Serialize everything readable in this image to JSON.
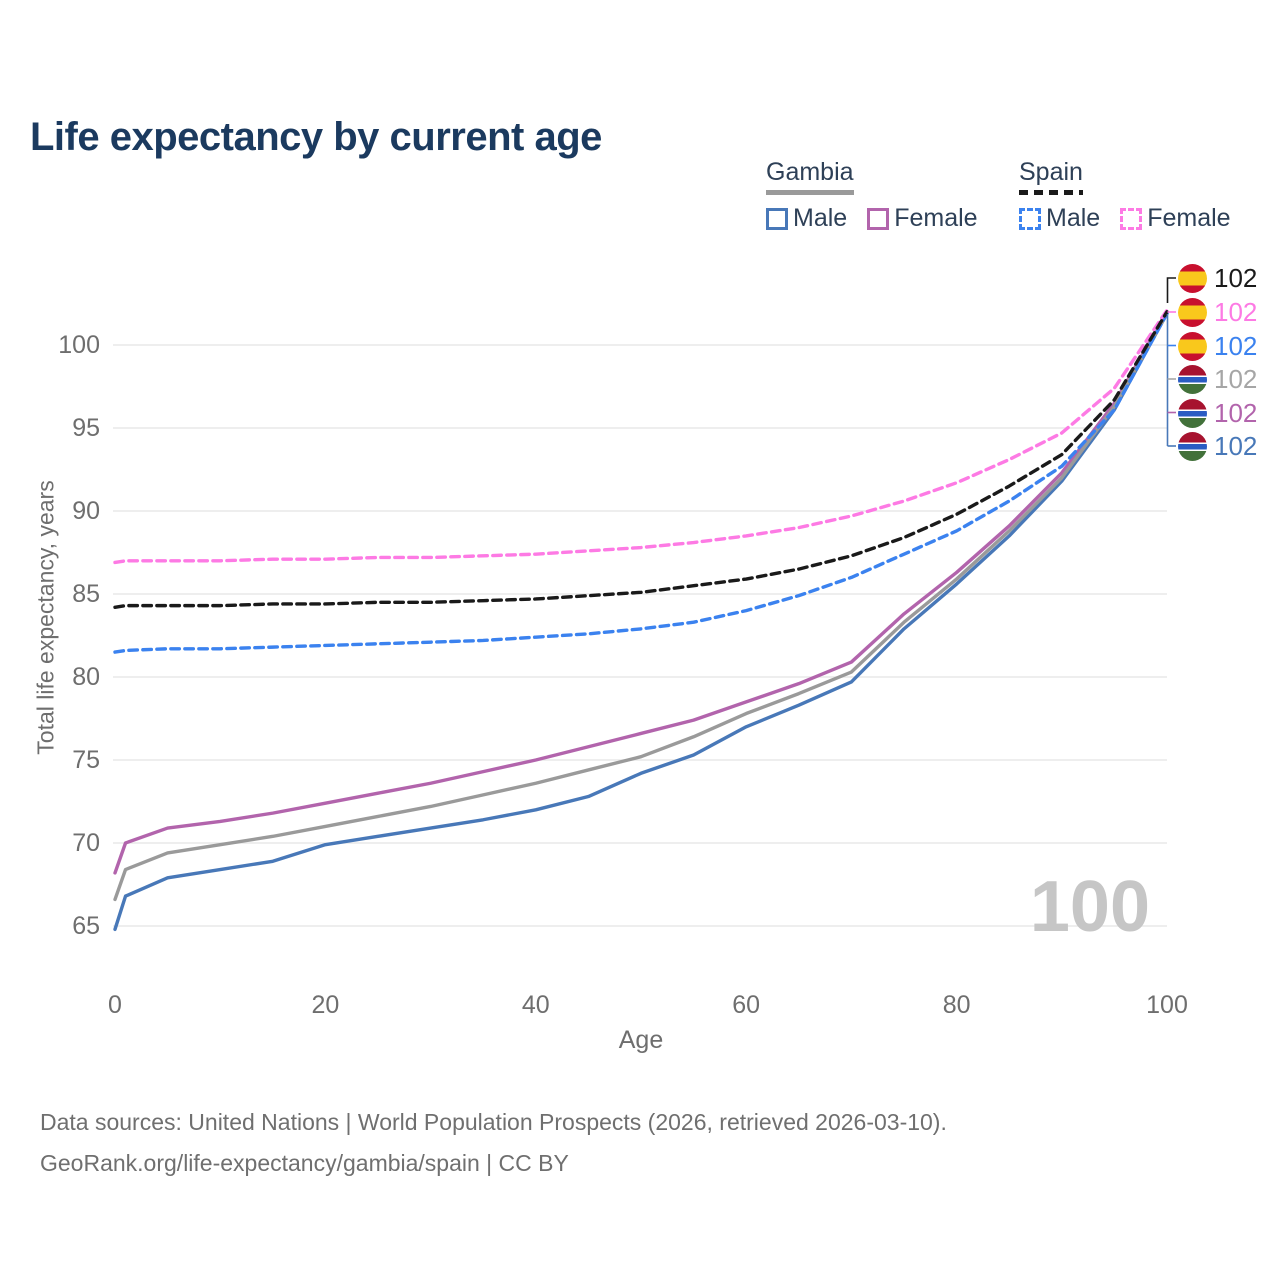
{
  "title": "Life expectancy by current age",
  "legend": {
    "groups": [
      {
        "label": "Gambia",
        "line_style": "solid",
        "line_color": "#9a9a9a",
        "items": [
          {
            "label": "Male",
            "color": "#4878b8"
          },
          {
            "label": "Female",
            "color": "#b264ac"
          }
        ]
      },
      {
        "label": "Spain",
        "line_style": "dashed",
        "line_color": "#1a1a1a",
        "items": [
          {
            "label": "Male",
            "color": "#3b82ef"
          },
          {
            "label": "Female",
            "color": "#fd7ae4"
          }
        ]
      }
    ]
  },
  "watermark": "100",
  "right_labels": [
    {
      "flag": "spain",
      "value": "102",
      "color": "#1a1a1a"
    },
    {
      "flag": "spain",
      "value": "102",
      "color": "#fd7ae4"
    },
    {
      "flag": "spain",
      "value": "102",
      "color": "#3b82ef"
    },
    {
      "flag": "gambia",
      "value": "102",
      "color": "#a6a6a6"
    },
    {
      "flag": "gambia",
      "value": "102",
      "color": "#b264ac"
    },
    {
      "flag": "gambia",
      "value": "102",
      "color": "#4878b8"
    }
  ],
  "footer": {
    "line1": "Data sources: United Nations | World Population Prospects (2026, retrieved 2026-03-10).",
    "line2": "GeoRank.org/life-expectancy/gambia/spain | CC BY"
  },
  "chart_data": {
    "type": "line",
    "title": "Life expectancy by current age",
    "xlabel": "Age",
    "ylabel": "Total life expectancy, years",
    "xlim": [
      0,
      100
    ],
    "ylim": [
      63,
      103
    ],
    "x_ticks": [
      0,
      20,
      40,
      60,
      80,
      100
    ],
    "y_ticks": [
      65,
      70,
      75,
      80,
      85,
      90,
      95,
      100
    ],
    "grid": "horizontal-only",
    "legend_position": "top-right",
    "x": [
      0,
      1,
      5,
      10,
      15,
      20,
      25,
      30,
      35,
      40,
      45,
      50,
      55,
      60,
      65,
      70,
      75,
      80,
      85,
      90,
      95,
      100
    ],
    "series": [
      {
        "name": "Spain Total",
        "country": "Spain",
        "sex": "Both",
        "style": "dashed",
        "color": "#1a1a1a",
        "values": [
          84.2,
          84.3,
          84.3,
          84.3,
          84.4,
          84.4,
          84.5,
          84.5,
          84.6,
          84.7,
          84.9,
          85.1,
          85.5,
          85.9,
          86.5,
          87.3,
          88.4,
          89.8,
          91.5,
          93.4,
          96.7,
          102.0
        ]
      },
      {
        "name": "Spain Female",
        "country": "Spain",
        "sex": "Female",
        "style": "dashed",
        "color": "#fd7ae4",
        "values": [
          86.9,
          87.0,
          87.0,
          87.0,
          87.1,
          87.1,
          87.2,
          87.2,
          87.3,
          87.4,
          87.6,
          87.8,
          88.1,
          88.5,
          89.0,
          89.7,
          90.6,
          91.7,
          93.1,
          94.7,
          97.4,
          102.1
        ]
      },
      {
        "name": "Spain Male",
        "country": "Spain",
        "sex": "Male",
        "style": "dashed",
        "color": "#3b82ef",
        "values": [
          81.5,
          81.6,
          81.7,
          81.7,
          81.8,
          81.9,
          82.0,
          82.1,
          82.2,
          82.4,
          82.6,
          82.9,
          83.3,
          84.0,
          84.9,
          86.0,
          87.4,
          88.8,
          90.6,
          92.7,
          96.1,
          101.9
        ]
      },
      {
        "name": "Gambia Total",
        "country": "Gambia",
        "sex": "Both",
        "style": "solid",
        "color": "#9a9a9a",
        "values": [
          66.6,
          68.4,
          69.4,
          69.9,
          70.4,
          71.0,
          71.6,
          72.2,
          72.9,
          73.6,
          74.4,
          75.2,
          76.4,
          77.8,
          79.0,
          80.3,
          83.3,
          85.9,
          88.8,
          92.0,
          96.3,
          101.9
        ]
      },
      {
        "name": "Gambia Female",
        "country": "Gambia",
        "sex": "Female",
        "style": "solid",
        "color": "#b264ac",
        "values": [
          68.2,
          70.0,
          70.9,
          71.3,
          71.8,
          72.4,
          73.0,
          73.6,
          74.3,
          75.0,
          75.8,
          76.6,
          77.4,
          78.5,
          79.6,
          80.9,
          83.8,
          86.3,
          89.1,
          92.3,
          96.5,
          102.0
        ]
      },
      {
        "name": "Gambia Male",
        "country": "Gambia",
        "sex": "Male",
        "style": "solid",
        "color": "#4878b8",
        "values": [
          64.8,
          66.8,
          67.9,
          68.4,
          68.9,
          69.9,
          70.4,
          70.9,
          71.4,
          72.0,
          72.8,
          74.2,
          75.3,
          77.0,
          78.3,
          79.7,
          82.9,
          85.6,
          88.5,
          91.8,
          96.1,
          101.9
        ]
      }
    ]
  }
}
